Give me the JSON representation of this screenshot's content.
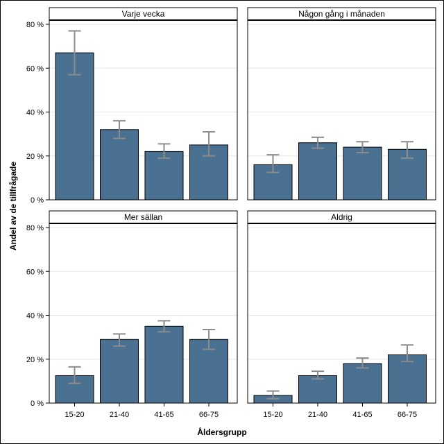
{
  "chart_data": {
    "type": "bar",
    "xlabel": "Åldersgrupp",
    "ylabel": "Andel av de tillfrågade",
    "ylim": [
      0,
      80
    ],
    "yticks": [
      0,
      20,
      40,
      60,
      80
    ],
    "ytick_suffix": " %",
    "categories": [
      "15-20",
      "21-40",
      "41-65",
      "66-75"
    ],
    "bar_color": "#4a7191",
    "error_color": "#8c8c8c",
    "grid_color": "#e6e6e6",
    "panels": [
      {
        "name": "Varje vecka",
        "values": [
          67,
          32,
          22,
          25
        ],
        "err_low": [
          57,
          28,
          19,
          20
        ],
        "err_high": [
          77,
          36,
          25.5,
          31
        ]
      },
      {
        "name": "Någon gång i månaden",
        "values": [
          16,
          26,
          24,
          23
        ],
        "err_low": [
          12.5,
          23.5,
          21.5,
          19
        ],
        "err_high": [
          20.5,
          28.5,
          26.5,
          26.5
        ]
      },
      {
        "name": "Mer sällan",
        "values": [
          12.5,
          29,
          35,
          29
        ],
        "err_low": [
          9,
          26,
          32.5,
          24.5
        ],
        "err_high": [
          16.5,
          31.5,
          37.5,
          33.5
        ]
      },
      {
        "name": "Aldrig",
        "values": [
          3.5,
          12.5,
          18,
          22
        ],
        "err_low": [
          2,
          11,
          16,
          19
        ],
        "err_high": [
          5.5,
          14.5,
          20.5,
          26.5
        ]
      }
    ]
  }
}
